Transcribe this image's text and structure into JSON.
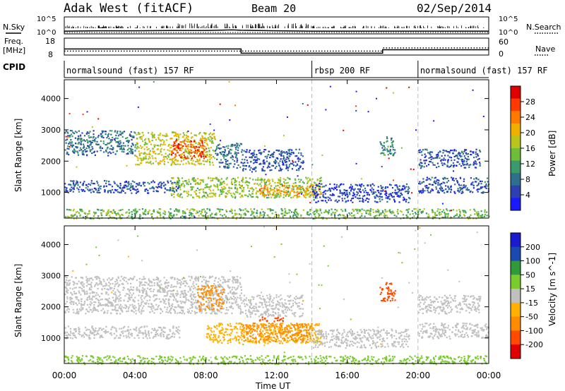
{
  "header": {
    "radar": "Adak West (fitACF)",
    "beam": "Beam 20",
    "date": "02/Sep/2014"
  },
  "top_panel": {
    "left_label": "N.Sky",
    "left_ticks": [
      "10^5",
      "10^0"
    ],
    "right_label": "N.Search",
    "right_ticks": [
      "10^5",
      "10^0"
    ]
  },
  "freq_panel": {
    "left_label_1": "Freq.",
    "left_label_2": "[MHz]",
    "left_ticks": [
      "18",
      "8"
    ],
    "right_label": "Nave",
    "right_ticks": [
      "60",
      "0"
    ]
  },
  "cpid": {
    "label": "CPID",
    "segments": [
      {
        "label": "normalsound (fast) 157 RF",
        "start_hour": 0,
        "end_hour": 14
      },
      {
        "label": "rbsp 200 RF",
        "start_hour": 14,
        "end_hour": 20
      },
      {
        "label": "normalsound (fast) 157 RF",
        "start_hour": 20,
        "end_hour": 24
      }
    ]
  },
  "xaxis": {
    "label": "Time UT",
    "ticks": [
      "00:00",
      "04:00",
      "08:00",
      "12:00",
      "16:00",
      "20:00",
      "00:00"
    ]
  },
  "chart_data": [
    {
      "type": "line",
      "title": "N.Sky / N.Search",
      "x": [
        0,
        2,
        4,
        6,
        8,
        9.5,
        10,
        12,
        14,
        16,
        18,
        20,
        22,
        24
      ],
      "series": [
        {
          "name": "N.Sky",
          "values": [
            3,
            4,
            4,
            5,
            5,
            8,
            6,
            4,
            3,
            3,
            3,
            3,
            3,
            3
          ]
        },
        {
          "name": "N.Search",
          "values": [
            1,
            1,
            1,
            1,
            1,
            1,
            1,
            1,
            1,
            1,
            1,
            1,
            1,
            1
          ]
        }
      ],
      "ylim": [
        0,
        100000
      ],
      "scale": "log"
    },
    {
      "type": "line",
      "title": "Freq / Nave",
      "x": [
        0,
        10,
        10,
        18,
        18,
        24
      ],
      "series": [
        {
          "name": "Freq.",
          "values": [
            11,
            11,
            8.3,
            8.3,
            10.5,
            10.5
          ]
        },
        {
          "name": "Nave",
          "values": [
            10,
            10,
            10,
            10,
            22,
            22
          ]
        }
      ],
      "ylim_left": [
        8,
        18
      ],
      "ylim_right": [
        0,
        60
      ]
    },
    {
      "type": "heatmap",
      "title": "Power",
      "xlabel": "Time UT",
      "ylabel": "Slant Range [km]",
      "xlim": [
        0,
        24
      ],
      "ylim": [
        180,
        4600
      ],
      "yticks": [
        1000,
        2000,
        3000,
        4000
      ],
      "colorbar": {
        "label": "Power [dB]",
        "ticks": [
          4,
          8,
          12,
          16,
          20,
          24,
          28
        ],
        "range": [
          0,
          32
        ],
        "colors": [
          "#1a1aff",
          "#2e3fb0",
          "#2e6e8f",
          "#3a9a6a",
          "#6dbd3a",
          "#b8c51c",
          "#f0b000",
          "#ff7a00",
          "#ff3a00",
          "#e00000"
        ]
      },
      "regions": [
        {
          "t0": 0.0,
          "t1": 4.0,
          "r0": 2200,
          "r1": 3000,
          "level": 8
        },
        {
          "t0": 4.0,
          "t1": 8.5,
          "r0": 1900,
          "r1": 2950,
          "level": 18
        },
        {
          "t0": 6.0,
          "t1": 8.0,
          "r0": 2100,
          "r1": 2700,
          "level": 27
        },
        {
          "t0": 8.5,
          "t1": 10.0,
          "r0": 1800,
          "r1": 2600,
          "level": 8
        },
        {
          "t0": 10.0,
          "t1": 13.5,
          "r0": 1700,
          "r1": 2400,
          "level": 6
        },
        {
          "t0": 0.0,
          "t1": 6.5,
          "r0": 1000,
          "r1": 1400,
          "level": 6
        },
        {
          "t0": 6.0,
          "t1": 14.5,
          "r0": 850,
          "r1": 1500,
          "level": 16
        },
        {
          "t0": 11.0,
          "t1": 14.5,
          "r0": 900,
          "r1": 1250,
          "level": 22
        },
        {
          "t0": 14.0,
          "t1": 19.5,
          "r0": 700,
          "r1": 1300,
          "level": 5
        },
        {
          "t0": 17.8,
          "t1": 18.7,
          "r0": 2200,
          "r1": 2800,
          "level": 10
        },
        {
          "t0": 20.0,
          "t1": 23.5,
          "r0": 1800,
          "r1": 2400,
          "level": 6
        },
        {
          "t0": 20.0,
          "t1": 24.0,
          "r0": 1000,
          "r1": 1500,
          "level": 6
        },
        {
          "t0": 0.0,
          "t1": 24.0,
          "r0": 180,
          "r1": 500,
          "level": 14
        }
      ]
    },
    {
      "type": "heatmap",
      "title": "Velocity",
      "xlabel": "Time UT",
      "ylabel": "Slant Range [km]",
      "xlim": [
        0,
        24
      ],
      "ylim": [
        180,
        4600
      ],
      "yticks": [
        1000,
        2000,
        3000,
        4000
      ],
      "colorbar": {
        "label": "Velocity [m s^-1]",
        "ticks": [
          -200,
          -100,
          -50,
          -15,
          15,
          50,
          100,
          200
        ],
        "colors": [
          "#e00000",
          "#ff4a00",
          "#ff8c00",
          "#ffb000",
          "#c0c0c0",
          "#7acc2c",
          "#2e9a3a",
          "#1a4ab0",
          "#1a1ad0"
        ]
      },
      "regions": [
        {
          "t0": 0.0,
          "t1": 10.0,
          "r0": 1800,
          "r1": 3000,
          "level": 0
        },
        {
          "t0": 7.5,
          "t1": 9.0,
          "r0": 1900,
          "r1": 2700,
          "level": -80
        },
        {
          "t0": 10.0,
          "t1": 13.5,
          "r0": 1700,
          "r1": 2400,
          "level": 0
        },
        {
          "t0": 0.0,
          "t1": 6.5,
          "r0": 1000,
          "r1": 1400,
          "level": 0
        },
        {
          "t0": 8.0,
          "t1": 14.5,
          "r0": 850,
          "r1": 1500,
          "level": -30
        },
        {
          "t0": 10.0,
          "t1": 14.0,
          "r0": 900,
          "r1": 1500,
          "level": -60
        },
        {
          "t0": 11.0,
          "t1": 12.5,
          "r0": 1550,
          "r1": 1700,
          "level": -150
        },
        {
          "t0": 14.0,
          "t1": 19.5,
          "r0": 700,
          "r1": 1300,
          "level": 0
        },
        {
          "t0": 17.8,
          "t1": 18.7,
          "r0": 2200,
          "r1": 2800,
          "level": -120
        },
        {
          "t0": 20.0,
          "t1": 23.5,
          "r0": 1800,
          "r1": 2400,
          "level": 0
        },
        {
          "t0": 20.0,
          "t1": 24.0,
          "r0": 1000,
          "r1": 1500,
          "level": 0
        },
        {
          "t0": 0.0,
          "t1": 24.0,
          "r0": 180,
          "r1": 450,
          "level": 30
        }
      ]
    }
  ]
}
